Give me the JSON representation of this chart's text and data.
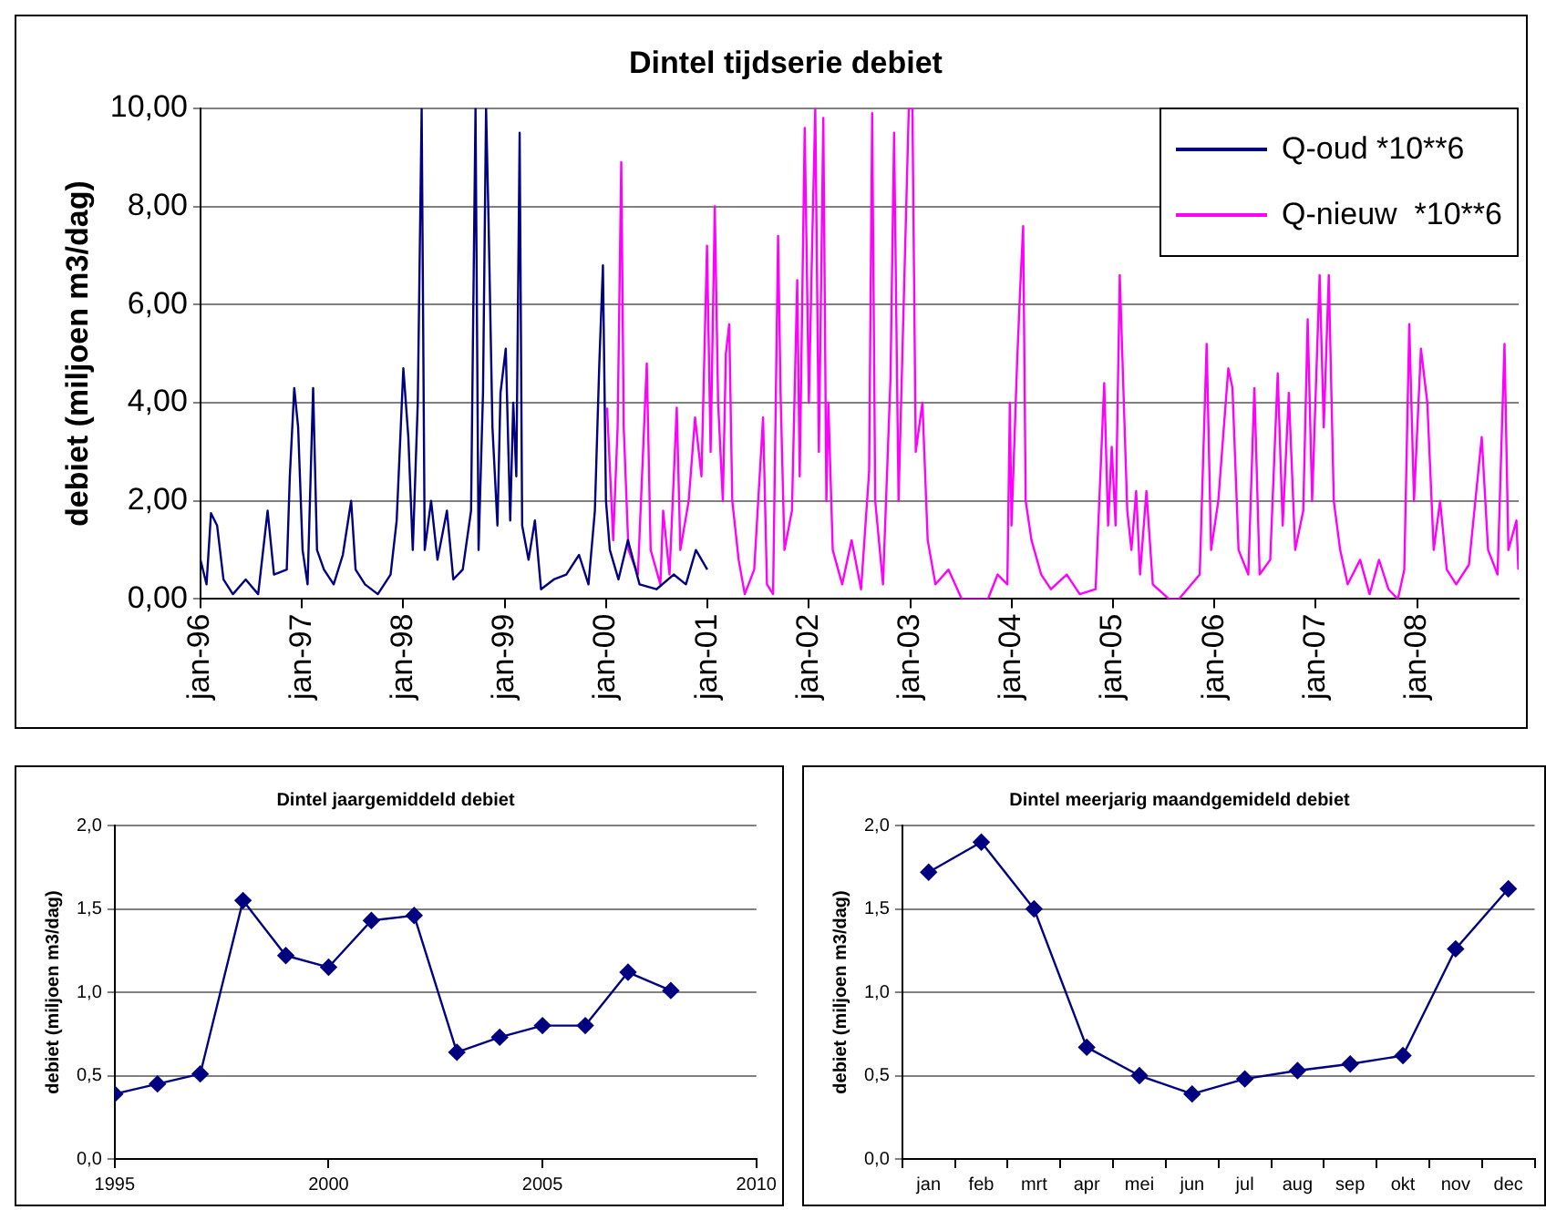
{
  "chart_data": [
    {
      "type": "line",
      "title": "Dintel tijdserie debiet",
      "ylabel": "debiet (miljoen m3/dag)",
      "xlim": [
        "1996-01-01",
        "2009-01-01"
      ],
      "xticks": [
        {
          "value": "1996-01-01",
          "label": "jan-96"
        },
        {
          "value": "1997-01-01",
          "label": "jan-97"
        },
        {
          "value": "1998-01-01",
          "label": "jan-98"
        },
        {
          "value": "1999-01-01",
          "label": "jan-99"
        },
        {
          "value": "2000-01-01",
          "label": "jan-00"
        },
        {
          "value": "2001-01-01",
          "label": "jan-01"
        },
        {
          "value": "2002-01-01",
          "label": "jan-02"
        },
        {
          "value": "2003-01-01",
          "label": "jan-03"
        },
        {
          "value": "2004-01-01",
          "label": "jan-04"
        },
        {
          "value": "2005-01-01",
          "label": "jan-05"
        },
        {
          "value": "2006-01-01",
          "label": "jan-06"
        },
        {
          "value": "2007-01-01",
          "label": "jan-07"
        },
        {
          "value": "2008-01-01",
          "label": "jan-08"
        }
      ],
      "ylim": [
        0,
        10
      ],
      "yticks": [
        {
          "value": 0,
          "label": "0,00"
        },
        {
          "value": 2,
          "label": "2,00"
        },
        {
          "value": 4,
          "label": "4,00"
        },
        {
          "value": 6,
          "label": "6,00"
        },
        {
          "value": 8,
          "label": "8,00"
        },
        {
          "value": 10,
          "label": "10,00"
        }
      ],
      "grid": "y",
      "legend": "top right",
      "marker": "none",
      "series": [
        {
          "name": "Q-oud *10**6",
          "color": "#000080",
          "x": [
            "1996-01-01",
            "1996-01-23",
            "1996-02-08",
            "1996-03-01",
            "1996-03-24",
            "1996-04-27",
            "1996-06-12",
            "1996-07-27",
            "1996-08-30",
            "1996-09-22",
            "1996-11-07",
            "1996-11-18",
            "1996-12-04",
            "1996-12-18",
            "1997-01-03",
            "1997-01-21",
            "1997-02-10",
            "1997-02-24",
            "1997-03-21",
            "1997-04-25",
            "1997-05-28",
            "1997-06-27",
            "1997-07-13",
            "1997-08-16",
            "1997-10-01",
            "1997-11-16",
            "1997-12-08",
            "1998-01-01",
            "1998-01-19",
            "1998-02-04",
            "1998-02-22",
            "1998-03-08",
            "1998-03-19",
            "1998-04-11",
            "1998-05-04",
            "1998-06-07",
            "1998-06-30",
            "1998-08-03",
            "1998-09-02",
            "1998-09-18",
            "1998-09-29",
            "1998-10-15",
            "1998-10-26",
            "1998-11-04",
            "1998-11-18",
            "1998-12-06",
            "1998-12-17",
            "1999-01-05",
            "1999-01-21",
            "1999-02-01",
            "1999-02-12",
            "1999-02-24",
            "1999-03-05",
            "1999-03-28",
            "1999-04-20",
            "1999-05-12",
            "1999-06-27",
            "1999-08-11",
            "1999-09-26",
            "1999-10-30",
            "1999-11-22",
            "1999-12-08",
            "1999-12-21",
            "2000-01-01",
            "2000-01-15",
            "2000-02-15",
            "2000-03-20",
            "2000-05-01",
            "2000-07-01",
            "2000-09-01",
            "2000-10-15",
            "2000-11-20",
            "2000-12-31"
          ],
          "values": [
            0.8,
            0.3,
            1.75,
            1.5,
            0.4,
            0.1,
            0.4,
            0.1,
            1.8,
            0.5,
            0.6,
            2.5,
            4.3,
            3.5,
            1.0,
            0.3,
            4.3,
            1.0,
            0.6,
            0.3,
            0.9,
            2.0,
            0.6,
            0.3,
            0.1,
            0.5,
            1.6,
            4.7,
            3.3,
            1.0,
            4.0,
            10.0,
            1.0,
            2.0,
            0.8,
            1.8,
            0.4,
            0.6,
            1.8,
            10.0,
            1.0,
            4.2,
            10.0,
            7.7,
            3.5,
            1.5,
            4.2,
            5.1,
            1.6,
            4.0,
            2.5,
            9.5,
            1.5,
            0.8,
            1.6,
            0.2,
            0.4,
            0.5,
            0.9,
            0.3,
            1.8,
            4.8,
            6.8,
            2.0,
            1.0,
            0.4,
            1.2,
            0.3,
            0.2,
            0.5,
            0.3,
            1.0,
            0.6
          ]
        },
        {
          "name": "Q-nieuw  *10**6",
          "color": "#ff00ff",
          "x": [
            "2000-01-05",
            "2000-01-27",
            "2000-02-12",
            "2000-02-25",
            "2000-03-05",
            "2000-03-22",
            "2000-04-25",
            "2000-05-27",
            "2000-06-10",
            "2000-07-15",
            "2000-07-25",
            "2000-08-17",
            "2000-09-12",
            "2000-09-25",
            "2000-10-25",
            "2000-11-17",
            "2000-12-10",
            "2000-12-30",
            "2001-01-12",
            "2001-01-27",
            "2001-02-08",
            "2001-02-25",
            "2001-03-08",
            "2001-03-20",
            "2001-03-31",
            "2001-04-23",
            "2001-05-15",
            "2001-06-18",
            "2001-07-20",
            "2001-08-03",
            "2001-08-25",
            "2001-09-12",
            "2001-09-21",
            "2001-10-05",
            "2001-11-01",
            "2001-11-20",
            "2001-11-29",
            "2001-12-17",
            "2002-01-01",
            "2002-01-12",
            "2002-01-24",
            "2002-02-06",
            "2002-02-22",
            "2002-03-05",
            "2002-03-12",
            "2002-03-28",
            "2002-05-01",
            "2002-06-04",
            "2002-07-08",
            "2002-08-06",
            "2002-08-17",
            "2002-08-28",
            "2002-09-25",
            "2002-10-22",
            "2002-11-04",
            "2002-11-20",
            "2002-12-27",
            "2003-01-09",
            "2003-01-21",
            "2003-02-14",
            "2003-03-05",
            "2003-04-02",
            "2003-05-19",
            "2003-07-06",
            "2003-10-08",
            "2003-11-12",
            "2003-12-17",
            "2003-12-26",
            "2004-01-01",
            "2004-01-21",
            "2004-02-01",
            "2004-02-12",
            "2004-02-21",
            "2004-03-13",
            "2004-04-17",
            "2004-05-22",
            "2004-07-18",
            "2004-09-03",
            "2004-10-30",
            "2004-11-30",
            "2004-12-14",
            "2004-12-27",
            "2005-01-10",
            "2005-01-25",
            "2005-02-21",
            "2005-03-08",
            "2005-03-25",
            "2005-04-08",
            "2005-05-01",
            "2005-05-24",
            "2005-07-21",
            "2005-08-26",
            "2005-11-09",
            "2005-12-04",
            "2005-12-20",
            "2006-01-15",
            "2006-02-20",
            "2006-03-07",
            "2006-03-29",
            "2006-05-03",
            "2006-05-25",
            "2006-06-13",
            "2006-07-21",
            "2006-08-17",
            "2006-09-04",
            "2006-09-26",
            "2006-10-19",
            "2006-11-17",
            "2006-12-03",
            "2006-12-19",
            "2007-01-15",
            "2007-01-30",
            "2007-02-17",
            "2007-03-07",
            "2007-03-30",
            "2007-04-26",
            "2007-06-10",
            "2007-07-14",
            "2007-08-17",
            "2007-09-20",
            "2007-10-24",
            "2007-11-16",
            "2007-12-04",
            "2007-12-21",
            "2008-01-15",
            "2008-02-07",
            "2008-03-01",
            "2008-03-24",
            "2008-04-17",
            "2008-05-21",
            "2008-07-06",
            "2008-08-21",
            "2008-09-13",
            "2008-10-17",
            "2008-11-11",
            "2008-11-25",
            "2008-12-24",
            "2008-12-31"
          ],
          "values": [
            3.9,
            1.2,
            3.5,
            8.9,
            3.5,
            1.0,
            0.5,
            4.8,
            1.0,
            0.3,
            1.8,
            0.5,
            3.9,
            1.0,
            2.0,
            3.7,
            2.5,
            7.2,
            3.0,
            8.0,
            4.0,
            2.0,
            5.0,
            5.6,
            2.0,
            0.8,
            0.1,
            0.6,
            3.7,
            0.3,
            0.1,
            7.4,
            4.2,
            1.0,
            1.8,
            6.5,
            2.5,
            9.6,
            4.0,
            7.0,
            10.0,
            3.0,
            9.8,
            2.0,
            4.0,
            1.0,
            0.3,
            1.2,
            0.2,
            2.6,
            9.9,
            2.0,
            0.3,
            4.5,
            9.5,
            2.0,
            10.0,
            10.0,
            3.0,
            4.0,
            1.2,
            0.3,
            0.6,
            0.0,
            0.0,
            0.5,
            0.3,
            4.0,
            1.5,
            4.8,
            6.3,
            7.6,
            2.0,
            1.2,
            0.5,
            0.2,
            0.5,
            0.1,
            0.2,
            4.4,
            1.5,
            3.1,
            1.5,
            6.6,
            1.8,
            1.0,
            2.2,
            0.5,
            2.2,
            0.3,
            0.0,
            0.0,
            0.5,
            5.2,
            1.0,
            2.0,
            4.7,
            4.3,
            1.0,
            0.5,
            4.3,
            0.5,
            0.8,
            4.6,
            1.5,
            4.2,
            1.0,
            1.8,
            5.7,
            2.0,
            6.6,
            3.5,
            6.6,
            2.0,
            1.0,
            0.3,
            0.8,
            0.1,
            0.8,
            0.2,
            0.0,
            0.6,
            5.6,
            2.0,
            5.1,
            4.0,
            1.0,
            2.0,
            0.6,
            0.3,
            0.7,
            3.3,
            1.0,
            0.5,
            5.2,
            1.0,
            1.6,
            0.6
          ]
        }
      ]
    },
    {
      "type": "line",
      "title": "Dintel jaargemiddeld debiet",
      "ylabel": "debiet (miljoen m3/dag)",
      "xlim": [
        1995,
        2010
      ],
      "xticks": [
        1995,
        2000,
        2005,
        2010
      ],
      "ylim": [
        0,
        2
      ],
      "yticks": [
        {
          "value": 0,
          "label": "0,0"
        },
        {
          "value": 0.5,
          "label": "0,5"
        },
        {
          "value": 1,
          "label": "1,0"
        },
        {
          "value": 1.5,
          "label": "1,5"
        },
        {
          "value": 2,
          "label": "2,0"
        }
      ],
      "grid": "y",
      "marker": "diamond",
      "series": [
        {
          "color": "#000080",
          "x": [
            1995,
            1996,
            1997,
            1998,
            1999,
            2000,
            2001,
            2002,
            2003,
            2004,
            2005,
            2006,
            2007,
            2008
          ],
          "values": [
            0.39,
            0.45,
            0.51,
            1.55,
            1.22,
            1.15,
            1.43,
            1.46,
            0.64,
            0.73,
            0.8,
            0.8,
            1.12,
            1.01
          ]
        }
      ]
    },
    {
      "type": "line",
      "title": "Dintel meerjarig maandgemideld debiet",
      "ylabel": "debiet (miljoen m3/dag)",
      "categories": [
        "jan",
        "feb",
        "mrt",
        "apr",
        "mei",
        "jun",
        "jul",
        "aug",
        "sep",
        "okt",
        "nov",
        "dec"
      ],
      "ylim": [
        0,
        2
      ],
      "yticks": [
        {
          "value": 0,
          "label": "0,0"
        },
        {
          "value": 0.5,
          "label": "0,5"
        },
        {
          "value": 1,
          "label": "1,0"
        },
        {
          "value": 1.5,
          "label": "1,5"
        },
        {
          "value": 2,
          "label": "2,0"
        }
      ],
      "grid": "y",
      "marker": "diamond",
      "series": [
        {
          "color": "#000080",
          "values": [
            1.72,
            1.9,
            1.5,
            0.67,
            0.5,
            0.39,
            0.48,
            0.53,
            0.57,
            0.62,
            1.26,
            1.62
          ]
        }
      ]
    }
  ]
}
